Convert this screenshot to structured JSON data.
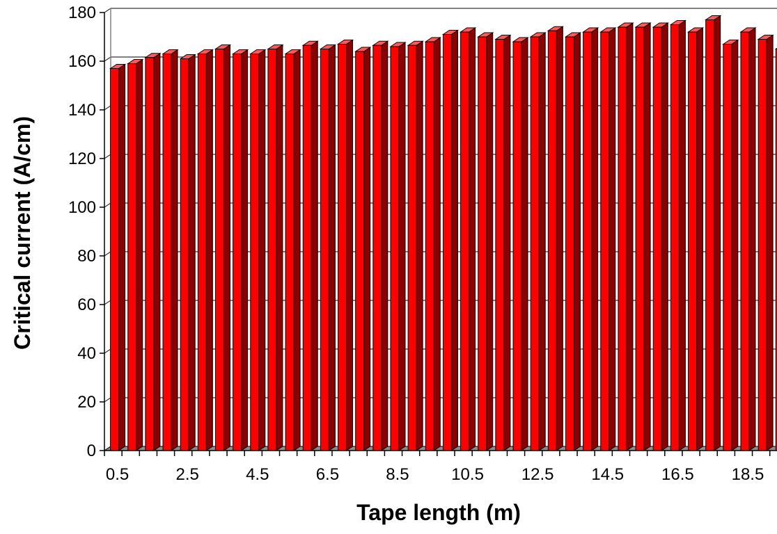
{
  "chart_data": {
    "type": "bar",
    "style": "3d-column",
    "title": "",
    "xlabel": "Tape length (m)",
    "ylabel": "Critical current (A/cm)",
    "ylim": [
      0,
      180
    ],
    "yticks": [
      "0",
      "20",
      "40",
      "60",
      "80",
      "100",
      "120",
      "140",
      "160",
      "180"
    ],
    "xtick_labels": [
      "0.5",
      "2.5",
      "4.5",
      "6.5",
      "8.5",
      "10.5",
      "12.5",
      "14.5",
      "16.5",
      "18.5"
    ],
    "grid": true,
    "legend": "none",
    "colors": {
      "bar_front": "#ff0000",
      "bar_side": "#8b0000",
      "bar_top": "#ff5a5a",
      "floor": "#8c8c8c"
    },
    "categories": [
      "0.5",
      "1",
      "1.5",
      "2",
      "2.5",
      "3",
      "3.5",
      "4",
      "4.5",
      "5",
      "5.5",
      "6",
      "6.5",
      "7",
      "7.5",
      "8",
      "8.5",
      "9",
      "9.5",
      "10",
      "10.5",
      "11",
      "11.5",
      "12",
      "12.5",
      "13",
      "13.5",
      "14",
      "14.5",
      "15",
      "15.5",
      "16",
      "16.5",
      "17",
      "17.5",
      "18",
      "18.5",
      "19",
      "19.5"
    ],
    "values": [
      157,
      159,
      161.5,
      163,
      161,
      163,
      165,
      163,
      163,
      165,
      163,
      166.5,
      165,
      167,
      164,
      166.5,
      166,
      166.5,
      168,
      171,
      172,
      170,
      169,
      168,
      170,
      172.5,
      170,
      172,
      172,
      174,
      174,
      174,
      175,
      172,
      177,
      167,
      172,
      169,
      165
    ]
  }
}
